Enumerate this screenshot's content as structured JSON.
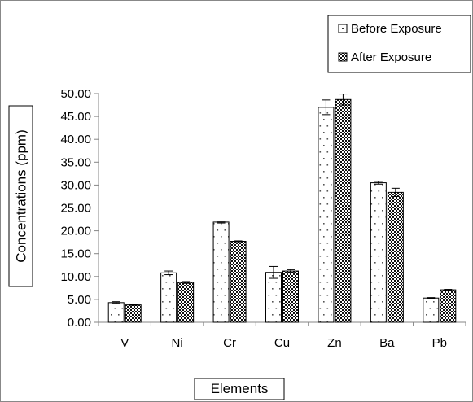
{
  "chart_data": {
    "type": "bar",
    "title": "",
    "xlabel": "Elements",
    "ylabel": "Concentrations (ppm)",
    "ylim": [
      0,
      50
    ],
    "y_tick_step": 5,
    "y_tick_labels": [
      "0.00",
      "5.00",
      "10.00",
      "15.00",
      "20.00",
      "25.00",
      "30.00",
      "35.00",
      "40.00",
      "45.00",
      "50.00"
    ],
    "categories": [
      "V",
      "Ni",
      "Cr",
      "Cu",
      "Zn",
      "Ba",
      "Pb"
    ],
    "series": [
      {
        "name": "Before Exposure",
        "pattern": "sparse-dots",
        "values": [
          4.3,
          10.8,
          21.9,
          10.9,
          47.0,
          30.5,
          5.3
        ],
        "errors": [
          0.2,
          0.4,
          0.2,
          1.3,
          1.6,
          0.3,
          0.1
        ]
      },
      {
        "name": "After Exposure",
        "pattern": "dense-dots",
        "values": [
          3.8,
          8.7,
          17.7,
          11.2,
          48.7,
          28.4,
          7.1
        ],
        "errors": [
          0.1,
          0.2,
          0.1,
          0.3,
          1.2,
          0.9,
          0.1
        ]
      }
    ],
    "grid": false,
    "legend_position": "top-right",
    "colors": {
      "axis": "#868686",
      "bar_outline": "#000000",
      "bar_fill": "#ffffff"
    }
  }
}
